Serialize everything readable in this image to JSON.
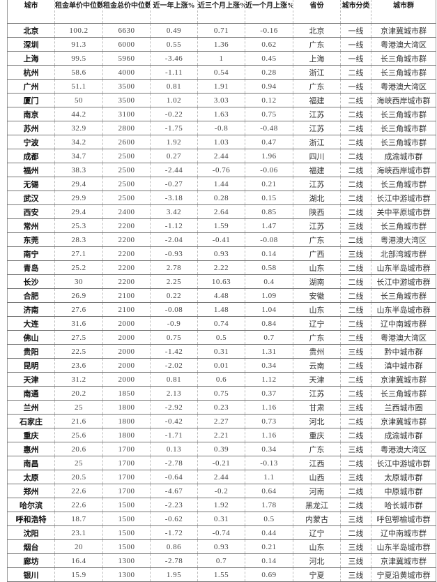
{
  "headers": [
    "城市",
    "租金单价中位数",
    "租金总价中位数",
    "近一年上涨%",
    "近三个月上涨%",
    "近一个月上涨%",
    "省份",
    "城市分类",
    "城市群"
  ],
  "rows": [
    [
      "北京",
      "100.2",
      "6630",
      "0.49",
      "0.71",
      "-0.16",
      "北京",
      "一线",
      "京津冀城市群"
    ],
    [
      "深圳",
      "91.3",
      "6000",
      "0.55",
      "1.36",
      "0.62",
      "广东",
      "一线",
      "粤港澳大湾区"
    ],
    [
      "上海",
      "99.5",
      "5960",
      "-3.46",
      "1",
      "0.45",
      "上海",
      "一线",
      "长三角城市群"
    ],
    [
      "杭州",
      "58.6",
      "4000",
      "-1.11",
      "0.54",
      "0.28",
      "浙江",
      "二线",
      "长三角城市群"
    ],
    [
      "广州",
      "51.1",
      "3500",
      "0.81",
      "1.91",
      "0.94",
      "广东",
      "一线",
      "粤港澳大湾区"
    ],
    [
      "厦门",
      "50",
      "3500",
      "1.02",
      "3.03",
      "0.12",
      "福建",
      "二线",
      "海峡西岸城市群"
    ],
    [
      "南京",
      "44.2",
      "3100",
      "-0.22",
      "1.63",
      "0.75",
      "江苏",
      "二线",
      "长三角城市群"
    ],
    [
      "苏州",
      "32.9",
      "2800",
      "-1.75",
      "-0.8",
      "-0.48",
      "江苏",
      "二线",
      "长三角城市群"
    ],
    [
      "宁波",
      "34.2",
      "2600",
      "1.92",
      "1.03",
      "0.47",
      "浙江",
      "二线",
      "长三角城市群"
    ],
    [
      "成都",
      "34.7",
      "2500",
      "0.27",
      "2.44",
      "1.96",
      "四川",
      "二线",
      "成渝城市群"
    ],
    [
      "福州",
      "38.3",
      "2500",
      "-2.44",
      "-0.76",
      "-0.06",
      "福建",
      "二线",
      "海峡西岸城市群"
    ],
    [
      "无锡",
      "29.4",
      "2500",
      "-0.27",
      "1.44",
      "0.21",
      "江苏",
      "二线",
      "长三角城市群"
    ],
    [
      "武汉",
      "29.9",
      "2500",
      "-3.18",
      "0.28",
      "0.15",
      "湖北",
      "二线",
      "长江中游城市群"
    ],
    [
      "西安",
      "29.4",
      "2400",
      "3.42",
      "2.64",
      "0.85",
      "陕西",
      "二线",
      "关中平原城市群"
    ],
    [
      "常州",
      "25.3",
      "2200",
      "-1.12",
      "1.59",
      "1.47",
      "江苏",
      "三线",
      "长三角城市群"
    ],
    [
      "东莞",
      "28.3",
      "2200",
      "-2.04",
      "-0.41",
      "-0.08",
      "广东",
      "二线",
      "粤港澳大湾区"
    ],
    [
      "南宁",
      "27.1",
      "2200",
      "-0.93",
      "0.93",
      "0.14",
      "广西",
      "三线",
      "北部湾城市群"
    ],
    [
      "青岛",
      "25.2",
      "2200",
      "2.78",
      "2.22",
      "0.58",
      "山东",
      "二线",
      "山东半岛城市群"
    ],
    [
      "长沙",
      "30",
      "2200",
      "2.25",
      "10.63",
      "0.4",
      "湖南",
      "二线",
      "长江中游城市群"
    ],
    [
      "合肥",
      "26.9",
      "2100",
      "0.22",
      "4.48",
      "1.09",
      "安徽",
      "二线",
      "长三角城市群"
    ],
    [
      "济南",
      "27.6",
      "2100",
      "-0.08",
      "1.48",
      "1.04",
      "山东",
      "二线",
      "山东半岛城市群"
    ],
    [
      "大连",
      "31.6",
      "2000",
      "-0.9",
      "0.74",
      "0.84",
      "辽宁",
      "二线",
      "辽中南城市群"
    ],
    [
      "佛山",
      "27.5",
      "2000",
      "0.75",
      "0.5",
      "0.7",
      "广东",
      "二线",
      "粤港澳大湾区"
    ],
    [
      "贵阳",
      "22.5",
      "2000",
      "-1.42",
      "0.31",
      "1.31",
      "贵州",
      "三线",
      "黔中城市群"
    ],
    [
      "昆明",
      "23.6",
      "2000",
      "-2.02",
      "0.01",
      "0.34",
      "云南",
      "二线",
      "滇中城市群"
    ],
    [
      "天津",
      "31.2",
      "2000",
      "0.81",
      "0.6",
      "1.12",
      "天津",
      "二线",
      "京津冀城市群"
    ],
    [
      "南通",
      "20.2",
      "1850",
      "2.13",
      "0.75",
      "0.37",
      "江苏",
      "二线",
      "长三角城市群"
    ],
    [
      "兰州",
      "25",
      "1800",
      "-2.92",
      "0.23",
      "1.16",
      "甘肃",
      "三线",
      "兰西城市圈"
    ],
    [
      "石家庄",
      "21.6",
      "1800",
      "-0.42",
      "2.27",
      "0.73",
      "河北",
      "二线",
      "京津冀城市群"
    ],
    [
      "重庆",
      "25.6",
      "1800",
      "-1.71",
      "2.21",
      "1.16",
      "重庆",
      "二线",
      "成渝城市群"
    ],
    [
      "惠州",
      "20.6",
      "1700",
      "0.13",
      "0.39",
      "0.34",
      "广东",
      "三线",
      "粤港澳大湾区"
    ],
    [
      "南昌",
      "25",
      "1700",
      "-2.78",
      "-0.21",
      "-0.13",
      "江西",
      "二线",
      "长江中游城市群"
    ],
    [
      "太原",
      "20.5",
      "1700",
      "-0.64",
      "2.44",
      "1.1",
      "山西",
      "三线",
      "太原城市群"
    ],
    [
      "郑州",
      "22.6",
      "1700",
      "-4.67",
      "-0.2",
      "0.64",
      "河南",
      "二线",
      "中原城市群"
    ],
    [
      "哈尔滨",
      "22.6",
      "1500",
      "-2.23",
      "1.92",
      "1.78",
      "黑龙江",
      "二线",
      "哈长城市群"
    ],
    [
      "呼和浩特",
      "18.7",
      "1500",
      "-0.62",
      "0.31",
      "0.5",
      "内蒙古",
      "三线",
      "呼包鄂榆城市群"
    ],
    [
      "沈阳",
      "23.1",
      "1500",
      "-1.72",
      "-0.74",
      "0.44",
      "辽宁",
      "二线",
      "辽中南城市群"
    ],
    [
      "烟台",
      "20",
      "1500",
      "0.86",
      "0.93",
      "0.21",
      "山东",
      "三线",
      "山东半岛城市群"
    ],
    [
      "廊坊",
      "16.4",
      "1300",
      "-2.78",
      "0.7",
      "0.14",
      "河北",
      "三线",
      "京津冀城市群"
    ],
    [
      "银川",
      "15.9",
      "1300",
      "1.95",
      "1.55",
      "0.69",
      "宁夏",
      "三线",
      "宁夏沿黄城市群"
    ]
  ]
}
